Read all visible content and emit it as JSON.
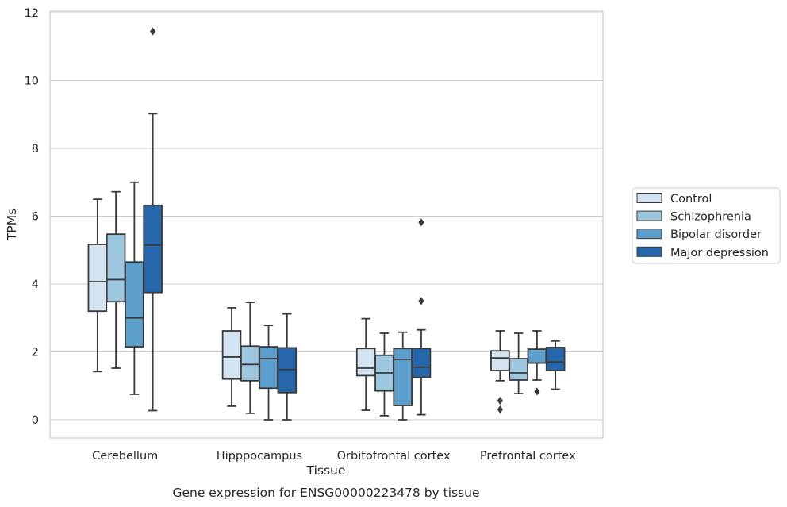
{
  "chart_data": {
    "type": "box",
    "title": "",
    "xlabel": "Tissue",
    "ylabel": "TPMs",
    "caption": "Gene expression for ENSG00000223478 by tissue",
    "ylim": [
      -0.55,
      12.1
    ],
    "yticks": [
      0,
      2,
      4,
      6,
      8,
      10,
      12
    ],
    "grid": "horizontal",
    "legend_position": "right",
    "categories": [
      "Cerebellum",
      "Hipppocampus",
      "Orbitofrontal cortex",
      "Prefrontal cortex"
    ],
    "series": [
      {
        "name": "Control",
        "color": "#d3e3f2",
        "boxes": [
          {
            "whisker_low": 1.42,
            "q1": 3.2,
            "median": 4.07,
            "q3": 5.17,
            "whisker_high": 6.5,
            "outliers": []
          },
          {
            "whisker_low": 0.4,
            "q1": 1.2,
            "median": 1.85,
            "q3": 2.62,
            "whisker_high": 3.3,
            "outliers": []
          },
          {
            "whisker_low": 0.28,
            "q1": 1.3,
            "median": 1.52,
            "q3": 2.1,
            "whisker_high": 2.98,
            "outliers": []
          },
          {
            "whisker_low": 1.15,
            "q1": 1.45,
            "median": 1.82,
            "q3": 2.03,
            "whisker_high": 2.62,
            "outliers": [
              0.56,
              0.3
            ]
          }
        ]
      },
      {
        "name": "Schizophrenia",
        "color": "#9dc7de",
        "boxes": [
          {
            "whisker_low": 1.52,
            "q1": 3.48,
            "median": 4.13,
            "q3": 5.47,
            "whisker_high": 6.72,
            "outliers": []
          },
          {
            "whisker_low": 0.19,
            "q1": 1.15,
            "median": 1.63,
            "q3": 2.17,
            "whisker_high": 3.46,
            "outliers": []
          },
          {
            "whisker_low": 0.12,
            "q1": 0.85,
            "median": 1.38,
            "q3": 1.9,
            "whisker_high": 2.55,
            "outliers": []
          },
          {
            "whisker_low": 0.77,
            "q1": 1.17,
            "median": 1.38,
            "q3": 1.8,
            "whisker_high": 2.55,
            "outliers": []
          }
        ]
      },
      {
        "name": "Bipolar disorder",
        "color": "#5c9fcd",
        "boxes": [
          {
            "whisker_low": 0.75,
            "q1": 2.15,
            "median": 3.0,
            "q3": 4.65,
            "whisker_high": 7.0,
            "outliers": []
          },
          {
            "whisker_low": 0.0,
            "q1": 0.93,
            "median": 1.8,
            "q3": 2.15,
            "whisker_high": 2.78,
            "outliers": []
          },
          {
            "whisker_low": 0.0,
            "q1": 0.42,
            "median": 1.78,
            "q3": 2.1,
            "whisker_high": 2.58,
            "outliers": []
          },
          {
            "whisker_low": 1.17,
            "q1": 1.67,
            "median": 1.67,
            "q3": 2.08,
            "whisker_high": 2.62,
            "outliers": [
              0.83
            ]
          }
        ]
      },
      {
        "name": "Major depression",
        "color": "#2567aa",
        "boxes": [
          {
            "whisker_low": 0.27,
            "q1": 3.75,
            "median": 5.15,
            "q3": 6.32,
            "whisker_high": 9.02,
            "outliers": [
              11.45
            ]
          },
          {
            "whisker_low": 0.0,
            "q1": 0.8,
            "median": 1.48,
            "q3": 2.12,
            "whisker_high": 3.12,
            "outliers": []
          },
          {
            "whisker_low": 0.15,
            "q1": 1.25,
            "median": 1.55,
            "q3": 2.1,
            "whisker_high": 2.65,
            "outliers": [
              5.82,
              3.5
            ]
          },
          {
            "whisker_low": 0.9,
            "q1": 1.45,
            "median": 1.7,
            "q3": 2.13,
            "whisker_high": 2.32,
            "outliers": []
          }
        ]
      }
    ]
  }
}
